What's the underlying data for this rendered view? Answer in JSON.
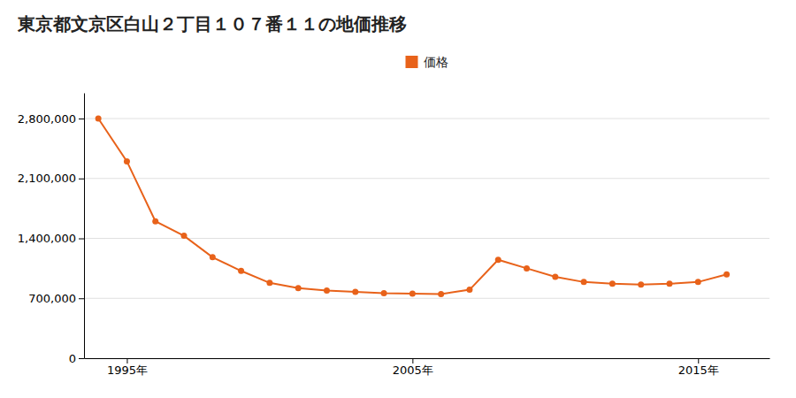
{
  "chart_data": {
    "type": "line",
    "title": "東京都文京区白山２丁目１０７番１１の地価推移",
    "x": [
      1994,
      1995,
      1996,
      1997,
      1998,
      1999,
      2000,
      2001,
      2002,
      2003,
      2004,
      2005,
      2006,
      2007,
      2008,
      2009,
      2010,
      2011,
      2012,
      2013,
      2014,
      2015,
      2016
    ],
    "series": [
      {
        "name": "価格",
        "color": "#e8621a",
        "marker": "circle",
        "values": [
          2800000,
          2300000,
          1600000,
          1430000,
          1180000,
          1020000,
          880000,
          820000,
          790000,
          775000,
          760000,
          755000,
          750000,
          800000,
          1150000,
          1050000,
          950000,
          890000,
          870000,
          860000,
          870000,
          890000,
          980000
        ]
      }
    ],
    "xlim": [
      1993.5,
      2017.5
    ],
    "xticks": [
      {
        "value": 1995,
        "label": "1995年"
      },
      {
        "value": 2005,
        "label": "2005年"
      },
      {
        "value": 2015,
        "label": "2015年"
      }
    ],
    "ylim": [
      0,
      3100000
    ],
    "yticks": [
      0,
      {
        "value": 700000,
        "label": "700,000"
      },
      {
        "value": 1400000,
        "label": "1,400,000"
      },
      {
        "value": 2100000,
        "label": "2,100,000"
      },
      {
        "value": 2800000,
        "label": "2,800,000"
      }
    ],
    "grid": true,
    "legend": "top"
  }
}
